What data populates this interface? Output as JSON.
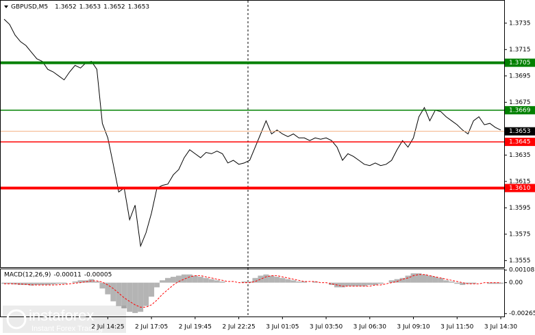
{
  "chart_data": [
    {
      "type": "line",
      "title": "GBPUSD,M5",
      "ohlc": [
        1.3652,
        1.3653,
        1.3652,
        1.3653
      ],
      "categories": [
        null,
        null,
        null,
        null,
        null,
        null,
        null,
        null,
        null,
        null,
        null,
        null,
        null,
        null,
        null,
        null,
        null,
        null,
        null,
        "2 Jul 14:25",
        null,
        null,
        null,
        null,
        null,
        null,
        null,
        "2 Jul 17:05",
        null,
        null,
        null,
        null,
        null,
        null,
        null,
        "2 Jul 19:45",
        null,
        null,
        null,
        null,
        null,
        null,
        null,
        "2 Jul 22:25",
        null,
        null,
        null,
        null,
        null,
        null,
        null,
        "3 Jul 01:05",
        null,
        null,
        null,
        null,
        null,
        null,
        null,
        "3 Jul 03:50",
        null,
        null,
        null,
        null,
        null,
        null,
        null,
        "3 Jul 06:30",
        null,
        null,
        null,
        null,
        null,
        null,
        null,
        "3 Jul 09:10",
        null,
        null,
        null,
        null,
        null,
        null,
        null,
        "3 Jul 11:50",
        null,
        null,
        null,
        null,
        null,
        null,
        null,
        "3 Jul 14:30"
      ],
      "series": [
        {
          "color": "#000000",
          "values": [
            1.3738,
            1.3734,
            1.3726,
            1.3721,
            1.3718,
            1.3713,
            1.3708,
            1.3706,
            1.37,
            1.3698,
            1.3695,
            1.3692,
            1.3698,
            1.3703,
            1.3701,
            1.3705,
            1.3706,
            1.37,
            1.3659,
            1.3648,
            1.3628,
            1.3607,
            1.361,
            1.3586,
            1.3597,
            1.3566,
            1.3576,
            1.3591,
            1.361,
            1.3612,
            1.3613,
            1.362,
            1.3624,
            1.3633,
            1.3639,
            1.3636,
            1.3633,
            1.3637,
            1.3636,
            1.3638,
            1.3636,
            1.3629,
            1.3631,
            1.3628,
            1.3629,
            1.3631,
            1.3641,
            1.3651,
            1.3661,
            1.3651,
            1.3654,
            1.3651,
            1.3649,
            1.3651,
            1.3648,
            1.3648,
            1.3646,
            1.3648,
            1.3647,
            1.3648,
            1.3646,
            1.3641,
            1.3631,
            1.3636,
            1.3634,
            1.3631,
            1.3628,
            1.3627,
            1.3629,
            1.3627,
            1.3628,
            1.3631,
            1.3639,
            1.3646,
            1.3641,
            1.3648,
            1.3664,
            1.3671,
            1.3661,
            1.3669,
            1.3668,
            1.3664,
            1.3661,
            1.3658,
            1.3654,
            1.3651,
            1.3661,
            1.3664,
            1.3658,
            1.3659,
            1.3656,
            1.3654
          ]
        }
      ],
      "ylim": [
        1.355,
        1.3751
      ],
      "yticks": [
        1.3735,
        1.3715,
        1.3695,
        1.3675,
        1.3635,
        1.3615,
        1.3595,
        1.3575,
        1.3555
      ],
      "levels": [
        {
          "value": 1.3705,
          "color": "#008000",
          "thick": true
        },
        {
          "value": 1.3669,
          "color": "#008000",
          "thick": false
        },
        {
          "value": 1.3645,
          "color": "#ff0000",
          "thick": false
        },
        {
          "value": 1.361,
          "label": "1.3610",
          "color": "#ff0000",
          "thick": true
        }
      ],
      "last": {
        "value": 1.3653,
        "color": "#000000"
      }
    },
    {
      "type": "macd",
      "title": "MACD(12,26,9)",
      "readout": [
        -0.00011,
        -5e-05
      ],
      "series": [
        {
          "type": "bar",
          "color": "#b4b4b4",
          "values": [
            -0.0001,
            -0.0001,
            -0.00015,
            -0.0002,
            -0.0002,
            -0.00025,
            -0.0002,
            -0.0002,
            -0.0002,
            -0.00015,
            -0.0001,
            -0.0001,
            0,
            0.0001,
            0.0002,
            0.0002,
            0.0003,
            0.0001,
            -0.0005,
            -0.001,
            -0.0016,
            -0.002,
            -0.0022,
            -0.0025,
            -0.0026,
            -0.0025,
            -0.002,
            -0.0012,
            -0.0004,
            0.0002,
            0.0004,
            0.0005,
            0.0006,
            0.0007,
            0.0007,
            0.0006,
            0.0005,
            0.0004,
            0.0003,
            0.0002,
            0.0001,
            0,
            0,
            0,
            0.0001,
            0.0001,
            0.0004,
            0.0006,
            0.0007,
            0.0006,
            0.0005,
            0.0004,
            0.0003,
            0.0002,
            0.0001,
            0.0001,
            0,
            0.0001,
            0,
            0,
            -0.0002,
            -0.0004,
            -0.0004,
            -0.0003,
            -0.0003,
            -0.0003,
            -0.0003,
            -0.0002,
            -0.0002,
            -0.0001,
            0,
            0.0002,
            0.0003,
            0.0004,
            0.0006,
            0.0008,
            0.0008,
            0.0007,
            0.0006,
            0.0005,
            0.0004,
            0.0002,
            0.0001,
            -0.0001,
            -0.0002,
            -0.0001,
            -0.0001,
            0,
            0,
            -0.0001,
            -0.0001,
            -0.0001
          ]
        },
        {
          "type": "line",
          "color": "#ff0000",
          "values": [
            -0.0001,
            -0.0001,
            -0.0001,
            -0.00012,
            -0.00015,
            -0.00018,
            -0.0002,
            -0.0002,
            -0.0002,
            -0.0002,
            -0.00018,
            -0.00015,
            -0.0001,
            -5e-05,
            0,
            8e-05,
            0.00015,
            0.00015,
            5e-05,
            -0.0002,
            -0.0005,
            -0.0009,
            -0.0013,
            -0.0016,
            -0.0019,
            -0.0021,
            -0.0021,
            -0.0019,
            -0.0015,
            -0.001,
            -0.0006,
            -0.0002,
            0.0001,
            0.0003,
            0.0005,
            0.0006,
            0.0006,
            0.0005,
            0.0004,
            0.0003,
            0.0002,
            0.0001,
            0.0001,
            0,
            0,
            0,
            0.0001,
            0.0003,
            0.0005,
            0.0006,
            0.0006,
            0.0005,
            0.0004,
            0.0003,
            0.0002,
            0.0001,
            0.0001,
            0.0001,
            0,
            0,
            -0.0001,
            -0.0002,
            -0.0003,
            -0.0003,
            -0.0003,
            -0.0003,
            -0.0003,
            -0.0003,
            -0.0002,
            -0.0002,
            -0.0001,
            0,
            0.0001,
            0.0003,
            0.0004,
            0.0006,
            0.0007,
            0.0007,
            0.0006,
            0.0005,
            0.0004,
            0.0003,
            0.0002,
            0.0001,
            0,
            -0.0001,
            -0.0001,
            -0.0001,
            0,
            0,
            0,
            0
          ]
        }
      ],
      "ylim": [
        -0.0029,
        0.00115
      ],
      "yticks": [
        0.00108,
        {
          "value": 0,
          "label": "0.00"
        },
        -0.00265
      ]
    }
  ],
  "watermark": {
    "name": "instaforex",
    "tagline": "Instant Forex Trading"
  }
}
